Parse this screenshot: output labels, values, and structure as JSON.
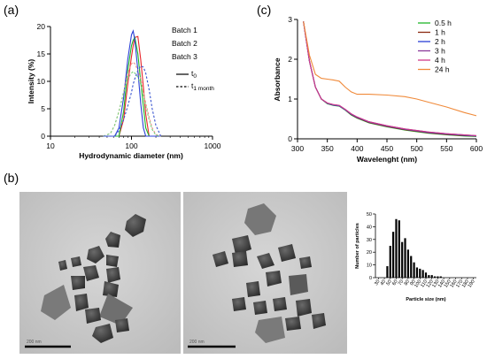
{
  "panels": {
    "a": "(a)",
    "b": "(b)",
    "c": "(c)"
  },
  "chart_data": [
    {
      "id": "a",
      "type": "line",
      "xlabel": "Hydrodynamic diameter (nm)",
      "ylabel": "Intensity (%)",
      "xscale": "log",
      "xlim": [
        10,
        1000
      ],
      "ylim": [
        0,
        20
      ],
      "xticks": [
        10,
        100,
        1000
      ],
      "yticks": [
        0,
        5,
        10,
        15,
        20
      ],
      "series_labels": [
        {
          "name": "Batch 1",
          "color": "#e8262b"
        },
        {
          "name": "Batch 2",
          "color": "#1fb52a"
        },
        {
          "name": "Batch 3",
          "color": "#2a3fd6"
        }
      ],
      "style_legend": [
        {
          "label": "t",
          "sub": "0",
          "style": "solid"
        },
        {
          "label": "t",
          "sub": "1 month",
          "style": "dashed"
        }
      ],
      "x": [
        45,
        55,
        62,
        70,
        80,
        90,
        100,
        105,
        110,
        120,
        130,
        140,
        150,
        165,
        180,
        200,
        230
      ],
      "series": [
        {
          "batch": "Batch 1",
          "time": "t0",
          "color": "#e8262b",
          "y": [
            0,
            0,
            0,
            0,
            3.0,
            9.5,
            14.5,
            16.5,
            18.0,
            18.2,
            14.0,
            9.0,
            4.0,
            0,
            0,
            0,
            0
          ]
        },
        {
          "batch": "Batch 2",
          "time": "t0",
          "color": "#1fb52a",
          "y": [
            0,
            0,
            0,
            0,
            4.5,
            12.0,
            16.5,
            17.5,
            18.0,
            15.0,
            10.0,
            5.5,
            1.5,
            0,
            0,
            0,
            0
          ]
        },
        {
          "batch": "Batch 3",
          "time": "t0",
          "color": "#2a3fd6",
          "y": [
            0,
            0,
            0,
            1.5,
            7.0,
            14.0,
            18.5,
            19.2,
            17.5,
            12.0,
            6.0,
            1.5,
            0,
            0,
            0,
            0,
            0
          ]
        },
        {
          "batch": "Batch 1",
          "time": "t1 month",
          "color": "#f0908a",
          "y": [
            0,
            0.5,
            2.0,
            4.5,
            8.0,
            11.5,
            13.2,
            13.5,
            13.2,
            12.0,
            10.5,
            8.0,
            6.0,
            3.5,
            1.5,
            0.3,
            0
          ]
        },
        {
          "batch": "Batch 2",
          "time": "t1 month",
          "color": "#7ad27e",
          "y": [
            0,
            0.5,
            2.0,
            4.5,
            8.0,
            10.5,
            11.5,
            11.8,
            11.5,
            10.8,
            9.5,
            7.5,
            5.5,
            3.0,
            1.2,
            0.2,
            0
          ]
        },
        {
          "batch": "Batch 3",
          "time": "t1 month",
          "color": "#3a55d0",
          "y": [
            0,
            0,
            0,
            1.0,
            3.0,
            5.5,
            8.0,
            9.5,
            10.5,
            12.0,
            12.8,
            12.6,
            11.5,
            8.5,
            5.0,
            2.0,
            0
          ]
        }
      ]
    },
    {
      "id": "c",
      "type": "line",
      "xlabel": "Wavelenght (nm)",
      "ylabel": "Absorbance",
      "xlim": [
        300,
        600
      ],
      "ylim": [
        0,
        3
      ],
      "xticks": [
        300,
        350,
        400,
        450,
        500,
        550,
        600
      ],
      "yticks": [
        0,
        1,
        2,
        3
      ],
      "x": [
        310,
        320,
        330,
        340,
        350,
        360,
        370,
        380,
        390,
        400,
        420,
        450,
        480,
        500,
        520,
        550,
        580,
        600
      ],
      "series": [
        {
          "name": "0.5 h",
          "color": "#1fb52a",
          "y": [
            2.95,
            1.95,
            1.3,
            1.0,
            0.88,
            0.84,
            0.82,
            0.72,
            0.6,
            0.52,
            0.4,
            0.3,
            0.22,
            0.18,
            0.14,
            0.1,
            0.07,
            0.06
          ]
        },
        {
          "name": "1 h",
          "color": "#8b2a10",
          "y": [
            2.95,
            1.95,
            1.3,
            1.0,
            0.89,
            0.85,
            0.83,
            0.73,
            0.61,
            0.53,
            0.41,
            0.31,
            0.23,
            0.19,
            0.15,
            0.11,
            0.08,
            0.07
          ]
        },
        {
          "name": "2 h",
          "color": "#2a3fd6",
          "y": [
            2.95,
            1.95,
            1.3,
            1.0,
            0.89,
            0.85,
            0.83,
            0.73,
            0.62,
            0.54,
            0.42,
            0.32,
            0.24,
            0.2,
            0.16,
            0.12,
            0.09,
            0.07
          ]
        },
        {
          "name": "3 h",
          "color": "#8a3a9a",
          "y": [
            2.95,
            1.95,
            1.3,
            1.0,
            0.9,
            0.86,
            0.84,
            0.74,
            0.63,
            0.55,
            0.43,
            0.33,
            0.25,
            0.21,
            0.17,
            0.13,
            0.1,
            0.08
          ]
        },
        {
          "name": "4 h",
          "color": "#d03a8a",
          "y": [
            2.95,
            1.95,
            1.3,
            1.0,
            0.9,
            0.86,
            0.84,
            0.74,
            0.63,
            0.55,
            0.43,
            0.33,
            0.25,
            0.21,
            0.17,
            0.13,
            0.1,
            0.08
          ]
        },
        {
          "name": "24 h",
          "color": "#f08a3a",
          "y": [
            2.95,
            2.1,
            1.62,
            1.52,
            1.5,
            1.48,
            1.45,
            1.3,
            1.18,
            1.12,
            1.12,
            1.1,
            1.06,
            1.0,
            0.92,
            0.8,
            0.66,
            0.58
          ]
        }
      ]
    },
    {
      "id": "b-hist",
      "type": "bar",
      "xlabel": "Particle size (nm)",
      "ylabel": "Number of particles",
      "ylim": [
        0,
        50
      ],
      "yticks": [
        0,
        10,
        20,
        30,
        40,
        50
      ],
      "xtick_labels": [
        "30",
        "40",
        "50",
        "60",
        "70",
        "80",
        "90",
        "100",
        "110",
        "120",
        "130",
        "140",
        "150",
        "160",
        "170",
        "180",
        "190"
      ],
      "categories": [
        45,
        50,
        55,
        60,
        65,
        70,
        75,
        80,
        85,
        90,
        95,
        100,
        105,
        110,
        115,
        120,
        125,
        130,
        135
      ],
      "values": [
        9,
        25,
        36,
        46,
        45,
        28,
        31,
        22,
        17,
        12,
        8,
        7,
        6,
        4,
        2,
        2,
        1,
        1,
        1
      ],
      "xrange": [
        25,
        195
      ]
    }
  ],
  "tem": {
    "scale_left": "200 nm",
    "scale_right": "200 nm"
  }
}
